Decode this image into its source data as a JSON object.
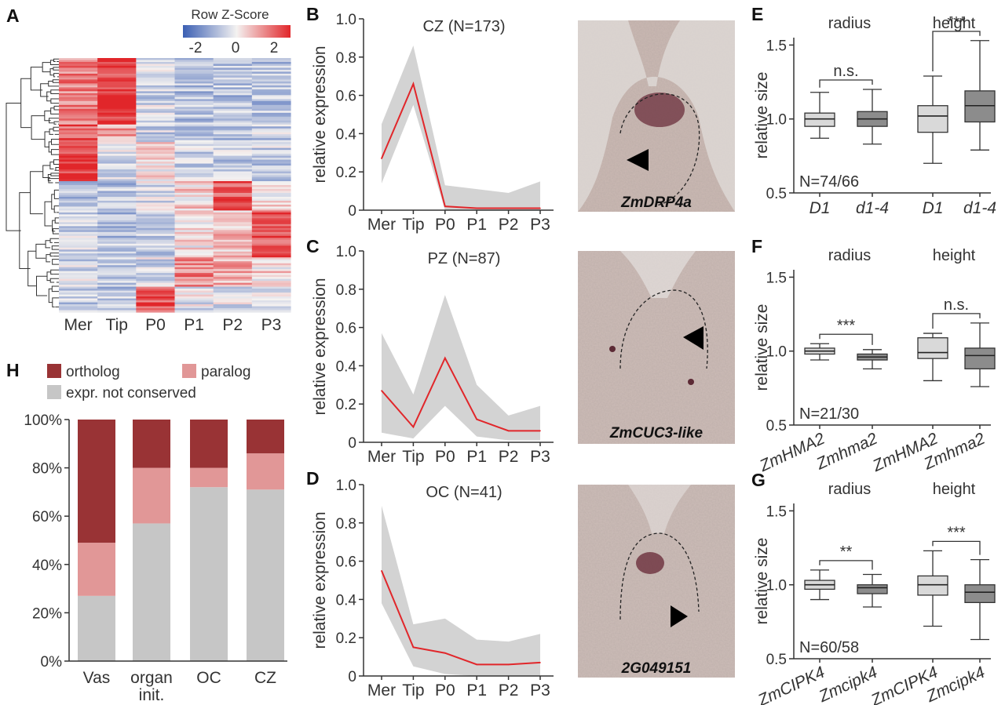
{
  "panels": {
    "A": {
      "letter": "A",
      "colorbar_title": "Row Z-Score",
      "colorbar_ticks": [
        "-2",
        "0",
        "2"
      ],
      "columns": [
        "Mer",
        "Tip",
        "P0",
        "P1",
        "P2",
        "P3"
      ],
      "colors": {
        "low": "#3b5fb3",
        "mid": "#f4f2f1",
        "high": "#e1262a"
      }
    },
    "B": {
      "letter": "B"
    },
    "C": {
      "letter": "C"
    },
    "D": {
      "letter": "D"
    },
    "E": {
      "letter": "E"
    },
    "F": {
      "letter": "F"
    },
    "G": {
      "letter": "G"
    },
    "H": {
      "letter": "H"
    }
  },
  "images": [
    {
      "label": "ZmDRP4a"
    },
    {
      "label": "ZmCUC3-like"
    },
    {
      "label": "2G049151"
    }
  ],
  "chart_data": [
    {
      "id": "B",
      "type": "line",
      "title": "CZ (N=173)",
      "ylabel": "relative expression",
      "categories": [
        "Mer",
        "Tip",
        "P0",
        "P1",
        "P2",
        "P3"
      ],
      "yticks": [
        "0",
        "0.2",
        "0.4",
        "0.6",
        "0.8",
        "1.0"
      ],
      "ylim": [
        0,
        1.0
      ],
      "series": [
        {
          "name": "mean",
          "values": [
            0.27,
            0.66,
            0.02,
            0.01,
            0.01,
            0.01
          ]
        }
      ],
      "band_upper": [
        0.45,
        0.86,
        0.13,
        0.11,
        0.09,
        0.15
      ],
      "band_lower": [
        0.14,
        0.55,
        0.0,
        0.0,
        0.0,
        0.0
      ]
    },
    {
      "id": "C",
      "type": "line",
      "title": "PZ (N=87)",
      "ylabel": "relative expression",
      "categories": [
        "Mer",
        "Tip",
        "P0",
        "P1",
        "P2",
        "P3"
      ],
      "yticks": [
        "0",
        "0.2",
        "0.4",
        "0.6",
        "0.8",
        "1.0"
      ],
      "ylim": [
        0,
        1.0
      ],
      "series": [
        {
          "name": "mean",
          "values": [
            0.27,
            0.08,
            0.44,
            0.12,
            0.06,
            0.06
          ]
        }
      ],
      "band_upper": [
        0.57,
        0.25,
        0.77,
        0.3,
        0.14,
        0.19
      ],
      "band_lower": [
        0.05,
        0.02,
        0.19,
        0.03,
        0.01,
        0.01
      ]
    },
    {
      "id": "D",
      "type": "line",
      "title": "OC (N=41)",
      "ylabel": "relative expression",
      "categories": [
        "Mer",
        "Tip",
        "P0",
        "P1",
        "P2",
        "P3"
      ],
      "yticks": [
        "0",
        "0.2",
        "0.4",
        "0.6",
        "0.8",
        "1.0"
      ],
      "ylim": [
        0,
        1.0
      ],
      "series": [
        {
          "name": "mean",
          "values": [
            0.55,
            0.15,
            0.12,
            0.06,
            0.06,
            0.07
          ]
        }
      ],
      "band_upper": [
        0.89,
        0.27,
        0.3,
        0.19,
        0.18,
        0.22
      ],
      "band_lower": [
        0.38,
        0.05,
        0.01,
        0.0,
        0.0,
        0.0
      ]
    },
    {
      "id": "E",
      "type": "box",
      "ylabel": "relative size",
      "group_labels": [
        "radius",
        "height"
      ],
      "categories": [
        "D1",
        "d1-4",
        "D1",
        "d1-4"
      ],
      "yticks": [
        "0.5",
        "1.0",
        "1.5"
      ],
      "ylim": [
        0.5,
        1.55
      ],
      "n_label": "N=74/66",
      "boxes": [
        {
          "min": 0.87,
          "q1": 0.95,
          "median": 1.0,
          "q3": 1.04,
          "max": 1.18
        },
        {
          "min": 0.83,
          "q1": 0.95,
          "median": 1.0,
          "q3": 1.05,
          "max": 1.2
        },
        {
          "min": 0.7,
          "q1": 0.91,
          "median": 1.02,
          "q3": 1.09,
          "max": 1.29
        },
        {
          "min": 0.79,
          "q1": 0.98,
          "median": 1.09,
          "q3": 1.19,
          "max": 1.53
        }
      ],
      "significance": [
        {
          "pair": [
            0,
            1
          ],
          "label": "n.s."
        },
        {
          "pair": [
            2,
            3
          ],
          "label": "***"
        }
      ]
    },
    {
      "id": "F",
      "type": "box",
      "ylabel": "relative size",
      "group_labels": [
        "radius",
        "height"
      ],
      "categories": [
        "ZmHMA2",
        "Zmhma2",
        "ZmHMA2",
        "Zmhma2"
      ],
      "yticks": [
        "0.5",
        "1.0",
        "1.5"
      ],
      "ylim": [
        0.5,
        1.55
      ],
      "n_label": "N=21/30",
      "boxes": [
        {
          "min": 0.94,
          "q1": 0.98,
          "median": 1.0,
          "q3": 1.02,
          "max": 1.05
        },
        {
          "min": 0.88,
          "q1": 0.94,
          "median": 0.96,
          "q3": 0.98,
          "max": 1.01
        },
        {
          "min": 0.8,
          "q1": 0.95,
          "median": 0.99,
          "q3": 1.09,
          "max": 1.12
        },
        {
          "min": 0.76,
          "q1": 0.88,
          "median": 0.97,
          "q3": 1.02,
          "max": 1.19
        }
      ],
      "significance": [
        {
          "pair": [
            0,
            1
          ],
          "label": "***"
        },
        {
          "pair": [
            2,
            3
          ],
          "label": "n.s."
        }
      ]
    },
    {
      "id": "G",
      "type": "box",
      "ylabel": "relative size",
      "group_labels": [
        "radius",
        "height"
      ],
      "categories": [
        "ZmCIPK4",
        "Zmcipk4",
        "ZmCIPK4",
        "Zmcipk4"
      ],
      "yticks": [
        "0.5",
        "1.0",
        "1.5"
      ],
      "ylim": [
        0.5,
        1.55
      ],
      "n_label": "N=60/58",
      "boxes": [
        {
          "min": 0.9,
          "q1": 0.97,
          "median": 1.0,
          "q3": 1.03,
          "max": 1.1
        },
        {
          "min": 0.85,
          "q1": 0.94,
          "median": 0.98,
          "q3": 1.0,
          "max": 1.07
        },
        {
          "min": 0.72,
          "q1": 0.93,
          "median": 1.0,
          "q3": 1.06,
          "max": 1.23
        },
        {
          "min": 0.63,
          "q1": 0.88,
          "median": 0.95,
          "q3": 1.0,
          "max": 1.17
        }
      ],
      "significance": [
        {
          "pair": [
            0,
            1
          ],
          "label": "**"
        },
        {
          "pair": [
            2,
            3
          ],
          "label": "***"
        }
      ]
    },
    {
      "id": "H",
      "type": "bar",
      "stacked": true,
      "categories": [
        "Vas",
        "organ init.",
        "OC",
        "CZ"
      ],
      "category_lines": [
        [
          "Vas"
        ],
        [
          "organ",
          "init."
        ],
        [
          "OC"
        ],
        [
          "CZ"
        ]
      ],
      "yticks": [
        "0%",
        "20%",
        "40%",
        "60%",
        "80%",
        "100%"
      ],
      "ylim": [
        0,
        100
      ],
      "series": [
        {
          "name": "expr. not conserved",
          "color": "#c6c6c6",
          "values": [
            27,
            57,
            72,
            71
          ]
        },
        {
          "name": "paralog",
          "color": "#e19797",
          "values": [
            22,
            23,
            8,
            15
          ]
        },
        {
          "name": "ortholog",
          "color": "#993335",
          "values": [
            51,
            20,
            20,
            14
          ]
        }
      ],
      "legend": [
        "ortholog",
        "paralog",
        "expr. not conserved"
      ]
    }
  ]
}
